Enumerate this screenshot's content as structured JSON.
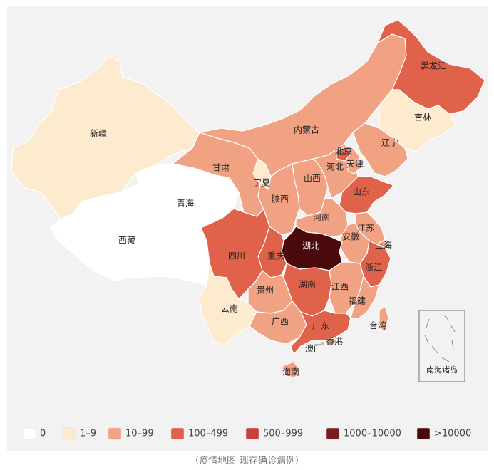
{
  "caption": "（疫情地图-现存确诊病例）",
  "inset_label": "南海诸岛",
  "colors": {
    "c0": "#ffffff",
    "c1": "#fdebcf",
    "c2": "#f0a283",
    "c3": "#e0624b",
    "c4": "#c9403a",
    "c5": "#7a1d20",
    "c6": "#4a0a0c"
  },
  "legend": [
    {
      "label": "0",
      "color": "#ffffff"
    },
    {
      "label": "1–9",
      "color": "#fdebcf"
    },
    {
      "label": "10–99",
      "color": "#f0a283"
    },
    {
      "label": "100–499",
      "color": "#e0624b"
    },
    {
      "label": "500–999",
      "color": "#c9403a"
    },
    {
      "label": "1000–10000",
      "color": "#7a1d20"
    },
    {
      "label": ">10000",
      "color": "#4a0a0c"
    }
  ],
  "provinces": [
    {
      "id": "xinjiang",
      "name": "新疆",
      "level": 1
    },
    {
      "id": "xizang",
      "name": "西藏",
      "level": 0
    },
    {
      "id": "qinghai",
      "name": "青海",
      "level": 0
    },
    {
      "id": "gansu",
      "name": "甘肃",
      "level": 2
    },
    {
      "id": "neimenggu",
      "name": "内蒙古",
      "level": 2
    },
    {
      "id": "heilongjiang",
      "name": "黑龙江",
      "level": 3
    },
    {
      "id": "jilin",
      "name": "吉林",
      "level": 1
    },
    {
      "id": "liaoning",
      "name": "辽宁",
      "level": 2
    },
    {
      "id": "beijing",
      "name": "北京",
      "level": 3
    },
    {
      "id": "tianjin",
      "name": "天津",
      "level": 2
    },
    {
      "id": "hebei",
      "name": "河北",
      "level": 2
    },
    {
      "id": "shanxi",
      "name": "山西",
      "level": 2
    },
    {
      "id": "shandong",
      "name": "山东",
      "level": 3
    },
    {
      "id": "ningxia",
      "name": "宁夏",
      "level": 1
    },
    {
      "id": "shaanxi",
      "name": "陕西",
      "level": 2
    },
    {
      "id": "henan",
      "name": "河南",
      "level": 2
    },
    {
      "id": "jiangsu",
      "name": "江苏",
      "level": 2
    },
    {
      "id": "anhui",
      "name": "安徽",
      "level": 2
    },
    {
      "id": "shanghai",
      "name": "上海",
      "level": 2
    },
    {
      "id": "hubei",
      "name": "湖北",
      "level": 6
    },
    {
      "id": "chongqing",
      "name": "重庆",
      "level": 3
    },
    {
      "id": "sichuan",
      "name": "四川",
      "level": 3
    },
    {
      "id": "zhejiang",
      "name": "浙江",
      "level": 3
    },
    {
      "id": "hunan",
      "name": "湖南",
      "level": 3
    },
    {
      "id": "jiangxi",
      "name": "江西",
      "level": 2
    },
    {
      "id": "guizhou",
      "name": "贵州",
      "level": 2
    },
    {
      "id": "yunnan",
      "name": "云南",
      "level": 1
    },
    {
      "id": "fujian",
      "name": "福建",
      "level": 2
    },
    {
      "id": "guangxi",
      "name": "广西",
      "level": 2
    },
    {
      "id": "guangdong",
      "name": "广东",
      "level": 3
    },
    {
      "id": "hainan",
      "name": "海南",
      "level": 2
    },
    {
      "id": "taiwan",
      "name": "台湾",
      "level": 2
    },
    {
      "id": "xianggang",
      "name": "香港",
      "level": 2
    },
    {
      "id": "aomen",
      "name": "澳门",
      "level": 2
    }
  ]
}
